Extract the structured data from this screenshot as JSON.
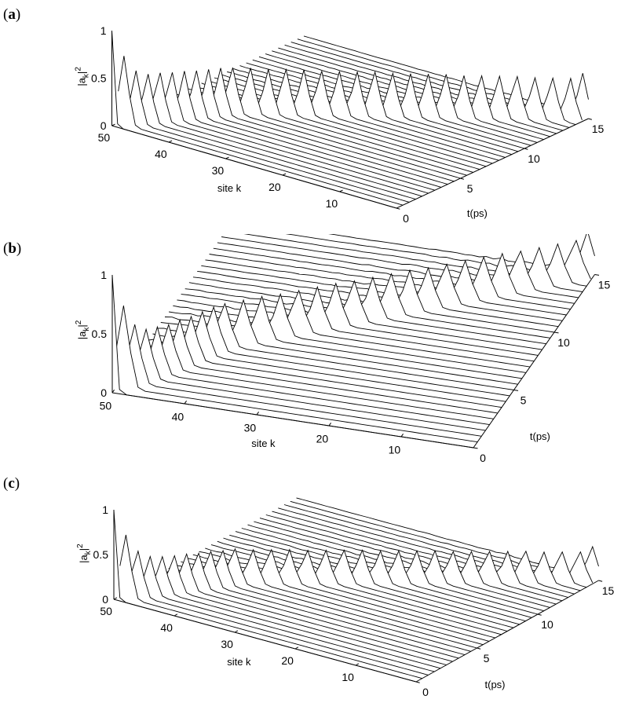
{
  "panels": [
    {
      "letter": "a"
    },
    {
      "letter": "b"
    },
    {
      "letter": "c"
    }
  ],
  "chart_data": [
    {
      "type": "line",
      "panel": "a",
      "title": "",
      "xlabel": "site k",
      "ylabel": "t(ps)",
      "zlabel": "|a_k|^2",
      "site_ticks": [
        "50",
        "40",
        "30",
        "20",
        "10"
      ],
      "time_ticks": [
        "0",
        "5",
        "10",
        "15"
      ],
      "z_ticks": [
        "0",
        "0.5",
        "1"
      ],
      "site_range": [
        0,
        50
      ],
      "time_range": [
        0,
        15
      ],
      "z_range": [
        0,
        1
      ],
      "grid": false,
      "series": [
        {
          "peak_site": [
            50,
            49,
            48,
            47,
            46,
            45,
            44,
            43,
            42,
            41,
            40,
            38,
            36,
            34,
            32,
            30,
            28,
            26,
            24,
            22,
            20,
            18,
            16,
            14,
            12,
            10,
            8,
            6,
            4,
            2,
            1
          ],
          "peak_amplitude": [
            1.0,
            0.72,
            0.55,
            0.5,
            0.5,
            0.49,
            0.49,
            0.48,
            0.48,
            0.48,
            0.47,
            0.47,
            0.46,
            0.46,
            0.46,
            0.45,
            0.45,
            0.45,
            0.45,
            0.44,
            0.44,
            0.44,
            0.44,
            0.43,
            0.43,
            0.43,
            0.43,
            0.42,
            0.42,
            0.42,
            0.46
          ]
        }
      ]
    },
    {
      "type": "line",
      "panel": "b",
      "title": "",
      "xlabel": "site k",
      "ylabel": "t(ps)",
      "zlabel": "|a_k|^2",
      "site_ticks": [
        "50",
        "40",
        "30",
        "20",
        "10"
      ],
      "time_ticks": [
        "0",
        "5",
        "10",
        "15"
      ],
      "z_ticks": [
        "0",
        "0.5",
        "1"
      ],
      "site_range": [
        0,
        50
      ],
      "time_range": [
        0,
        15
      ],
      "z_range": [
        0,
        1
      ],
      "grid": false,
      "series": [
        {
          "peak_site": [
            50,
            49,
            48,
            47,
            46,
            45,
            44,
            43,
            42,
            41,
            40,
            38,
            36,
            34,
            32,
            30,
            28,
            26,
            24,
            22,
            20,
            18,
            16,
            14,
            12,
            10,
            8,
            6,
            4,
            2,
            1
          ],
          "peak_amplitude": [
            1.0,
            0.7,
            0.5,
            0.42,
            0.4,
            0.38,
            0.38,
            0.37,
            0.37,
            0.37,
            0.36,
            0.36,
            0.36,
            0.35,
            0.35,
            0.35,
            0.35,
            0.34,
            0.34,
            0.34,
            0.34,
            0.33,
            0.33,
            0.33,
            0.33,
            0.33,
            0.32,
            0.32,
            0.32,
            0.32,
            0.36
          ]
        }
      ]
    },
    {
      "type": "line",
      "panel": "c",
      "title": "",
      "xlabel": "site k",
      "ylabel": "t(ps)",
      "zlabel": "|a_k|^2",
      "site_ticks": [
        "50",
        "40",
        "30",
        "20",
        "10"
      ],
      "time_ticks": [
        "0",
        "5",
        "10",
        "15"
      ],
      "z_ticks": [
        "0",
        "0.5",
        "1"
      ],
      "site_range": [
        0,
        50
      ],
      "time_range": [
        0,
        15
      ],
      "z_range": [
        0,
        1
      ],
      "grid": false,
      "series": [
        {
          "peak_site": [
            50,
            49,
            48,
            47,
            46,
            45,
            44,
            43,
            42,
            41,
            40,
            38,
            36,
            34,
            32,
            30,
            28,
            26,
            24,
            22,
            20,
            18,
            16,
            14,
            12,
            10,
            8,
            6,
            4,
            2,
            1
          ],
          "peak_amplitude": [
            1.0,
            0.7,
            0.5,
            0.42,
            0.4,
            0.39,
            0.39,
            0.38,
            0.38,
            0.37,
            0.37,
            0.36,
            0.36,
            0.36,
            0.35,
            0.35,
            0.35,
            0.35,
            0.34,
            0.34,
            0.34,
            0.34,
            0.33,
            0.33,
            0.33,
            0.33,
            0.33,
            0.32,
            0.32,
            0.32,
            0.36
          ]
        }
      ]
    }
  ]
}
